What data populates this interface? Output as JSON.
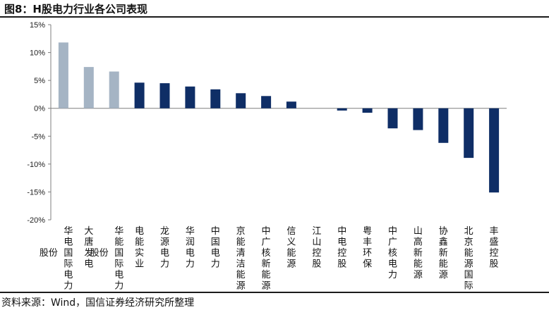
{
  "title": "图8：H股电力行业各公司表现",
  "source": "资料来源：Wind，国信证券经济研究所整理",
  "colors": {
    "highlight": "#a5b4c4",
    "main": "#0f2e66",
    "axis": "#7f7f7f"
  },
  "chart_data": {
    "type": "bar",
    "title": "H股电力行业各公司表现",
    "xlabel": "",
    "ylabel": "",
    "ylim": [
      -20,
      15
    ],
    "yticks": [
      "15%",
      "10%",
      "5%",
      "0%",
      "-5%",
      "-10%",
      "-15%",
      "-20%"
    ],
    "ytick_values": [
      15,
      10,
      5,
      0,
      -5,
      -10,
      -15,
      -20
    ],
    "categories": [
      "华电国际电力股份",
      "大唐发电",
      "华能国际电力股份",
      "电能实业",
      "龙源电力",
      "华润电力",
      "中国电力",
      "京能清洁能源",
      "中广核新能源",
      "信义能源",
      "江山控股",
      "中电控股",
      "粤丰环保",
      "中广核电力",
      "山高新能源",
      "协鑫新能源",
      "北京能源国际",
      "丰盛控股"
    ],
    "category_lines": [
      {
        "cols": [
          [
            "股份"
          ],
          [
            "华",
            "电",
            "国",
            "际",
            "电",
            "力"
          ]
        ]
      },
      {
        "cols": [
          [
            "大",
            "唐",
            "发",
            "电"
          ]
        ]
      },
      {
        "cols": [
          [
            "股份"
          ],
          [
            "华",
            "能",
            "国",
            "际",
            "电",
            "力"
          ]
        ]
      },
      {
        "cols": [
          [
            "电",
            "能",
            "实",
            "业"
          ]
        ]
      },
      {
        "cols": [
          [
            "龙",
            "源",
            "电",
            "力"
          ]
        ]
      },
      {
        "cols": [
          [
            "华",
            "润",
            "电",
            "力"
          ]
        ]
      },
      {
        "cols": [
          [
            "中",
            "国",
            "电",
            "力"
          ]
        ]
      },
      {
        "cols": [
          [
            "京",
            "能",
            "清",
            "洁",
            "能",
            "源"
          ]
        ]
      },
      {
        "cols": [
          [
            "中",
            "广",
            "核",
            "新",
            "能",
            "源"
          ]
        ]
      },
      {
        "cols": [
          [
            "信",
            "义",
            "能",
            "源"
          ]
        ]
      },
      {
        "cols": [
          [
            "江",
            "山",
            "控",
            "股"
          ]
        ]
      },
      {
        "cols": [
          [
            "中",
            "电",
            "控",
            "股"
          ]
        ]
      },
      {
        "cols": [
          [
            "粤",
            "丰",
            "环",
            "保"
          ]
        ]
      },
      {
        "cols": [
          [
            "中",
            "广",
            "核",
            "电",
            "力"
          ]
        ]
      },
      {
        "cols": [
          [
            "山",
            "高",
            "新",
            "能",
            "源"
          ]
        ]
      },
      {
        "cols": [
          [
            "协",
            "鑫",
            "新",
            "能",
            "源"
          ]
        ]
      },
      {
        "cols": [
          [
            "北",
            "京",
            "能",
            "源",
            "国",
            "际"
          ]
        ]
      },
      {
        "cols": [
          [
            "丰",
            "盛",
            "控",
            "股"
          ]
        ]
      }
    ],
    "values": [
      11.8,
      7.4,
      6.6,
      4.6,
      4.5,
      3.9,
      3.4,
      2.7,
      2.2,
      1.2,
      0.0,
      -0.4,
      -0.8,
      -3.6,
      -3.9,
      -6.2,
      -8.9,
      -15.1
    ],
    "highlighted": [
      true,
      true,
      true,
      false,
      false,
      false,
      false,
      false,
      false,
      false,
      false,
      false,
      false,
      false,
      false,
      false,
      false,
      false
    ]
  }
}
